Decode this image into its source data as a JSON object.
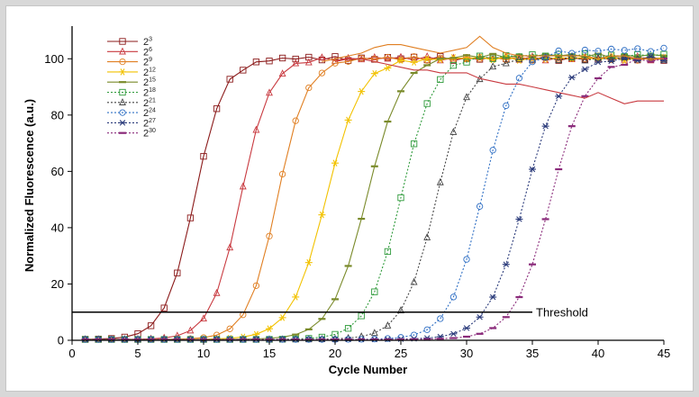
{
  "chart_data": {
    "type": "line",
    "xlabel": "Cycle Number",
    "ylabel": "Normalized Fluorescence (a.u.)",
    "xlim": [
      0,
      45
    ],
    "ylim": [
      0,
      110
    ],
    "xticks": [
      0,
      5,
      10,
      15,
      20,
      25,
      30,
      35,
      40,
      45
    ],
    "yticks": [
      0,
      20,
      40,
      60,
      80,
      100
    ],
    "grid": false,
    "legend_position": "top-left",
    "threshold": {
      "label": "Threshold",
      "y": 10,
      "x_start": 0,
      "x_end": 35
    },
    "series": [
      {
        "name_base": "2",
        "name_exp": "3",
        "color": "#8b1a1a",
        "marker": "square",
        "dash": "solid",
        "line_type": "sigmoid",
        "ct": 9.3,
        "slope": 0.9,
        "top": 100,
        "start": 0.3,
        "end": 45
      },
      {
        "name_base": "2",
        "name_exp": "6",
        "color": "#c8393f",
        "marker": "triangle",
        "dash": "solid",
        "line_type": "sigmoid",
        "ct": 12.8,
        "slope": 0.9,
        "top": 100,
        "start": 0.3,
        "end": 45
      },
      {
        "name_base": "2",
        "name_exp": "9",
        "color": "#e07f22",
        "marker": "circle",
        "dash": "solid",
        "line_type": "sigmoid",
        "ct": 15.6,
        "slope": 0.9,
        "top": 100,
        "start": 0.3,
        "end": 45
      },
      {
        "name_base": "2",
        "name_exp": "12",
        "color": "#f2c200",
        "marker": "asterisk",
        "dash": "solid",
        "line_type": "sigmoid",
        "ct": 19.3,
        "slope": 0.75,
        "top": 100,
        "start": 0.3,
        "end": 45
      },
      {
        "name_base": "2",
        "name_exp": "15",
        "color": "#7a8a2a",
        "marker": "dash",
        "dash": "solid",
        "line_type": "sigmoid",
        "ct": 22.4,
        "slope": 0.75,
        "top": 101,
        "start": 0.3,
        "end": 45
      },
      {
        "name_base": "2",
        "name_exp": "18",
        "color": "#2e9a3a",
        "marker": "square",
        "dash": "dotted",
        "line_type": "sigmoid",
        "ct": 25.0,
        "slope": 0.8,
        "top": 101,
        "start": 0.3,
        "end": 45
      },
      {
        "name_base": "2",
        "name_exp": "21",
        "color": "#444444",
        "marker": "triangle",
        "dash": "dotted",
        "line_type": "sigmoid",
        "ct": 27.7,
        "slope": 0.8,
        "top": 100,
        "start": 0.3,
        "end": 45
      },
      {
        "name_base": "2",
        "name_exp": "24",
        "color": "#2f6fc4",
        "marker": "circle",
        "dash": "dotted",
        "line_type": "sigmoid",
        "ct": 31.2,
        "slope": 0.8,
        "top": 103,
        "start": 0.3,
        "end": 45
      },
      {
        "name_base": "2",
        "name_exp": "27",
        "color": "#2a3a7a",
        "marker": "x-star",
        "dash": "dotted",
        "line_type": "sigmoid",
        "ct": 34.4,
        "slope": 0.72,
        "top": 100,
        "start": 0.3,
        "end": 45
      },
      {
        "name_base": "2",
        "name_exp": "30",
        "color": "#8a2a7a",
        "marker": "dash",
        "dash": "dotted",
        "line_type": "sigmoid",
        "ct": 36.4,
        "slope": 0.72,
        "top": 100,
        "start": 0.3,
        "end": 45
      }
    ],
    "annotation_curves": [
      {
        "note": "overshoot curve",
        "color": "#e07f22",
        "points": [
          [
            19,
            99
          ],
          [
            20,
            100
          ],
          [
            21,
            101
          ],
          [
            22,
            102
          ],
          [
            23,
            104
          ],
          [
            24,
            105
          ],
          [
            25,
            105
          ],
          [
            26,
            104
          ],
          [
            27,
            103
          ],
          [
            28,
            102
          ],
          [
            29,
            103
          ],
          [
            30,
            104
          ],
          [
            31,
            108
          ],
          [
            32,
            104
          ],
          [
            33,
            102
          ],
          [
            34,
            101
          ],
          [
            35,
            101
          ],
          [
            36,
            101
          ],
          [
            37,
            101
          ],
          [
            38,
            101
          ],
          [
            39,
            101
          ],
          [
            40,
            100
          ],
          [
            41,
            101
          ],
          [
            42,
            101
          ],
          [
            43,
            100
          ],
          [
            44,
            100
          ],
          [
            45,
            100
          ]
        ]
      },
      {
        "note": "plateau decline curve",
        "color": "#c8393f",
        "points": [
          [
            20,
            99
          ],
          [
            21,
            100
          ],
          [
            22,
            100
          ],
          [
            23,
            99
          ],
          [
            24,
            98
          ],
          [
            25,
            97
          ],
          [
            26,
            96
          ],
          [
            27,
            96
          ],
          [
            28,
            95
          ],
          [
            29,
            95
          ],
          [
            30,
            95
          ],
          [
            31,
            93
          ],
          [
            32,
            92
          ],
          [
            33,
            91
          ],
          [
            34,
            91
          ],
          [
            35,
            90
          ],
          [
            36,
            89
          ],
          [
            37,
            88
          ],
          [
            38,
            87
          ],
          [
            39,
            86
          ],
          [
            40,
            88
          ],
          [
            41,
            86
          ],
          [
            42,
            84
          ],
          [
            43,
            85
          ],
          [
            44,
            85
          ],
          [
            45,
            85
          ]
        ]
      }
    ]
  }
}
